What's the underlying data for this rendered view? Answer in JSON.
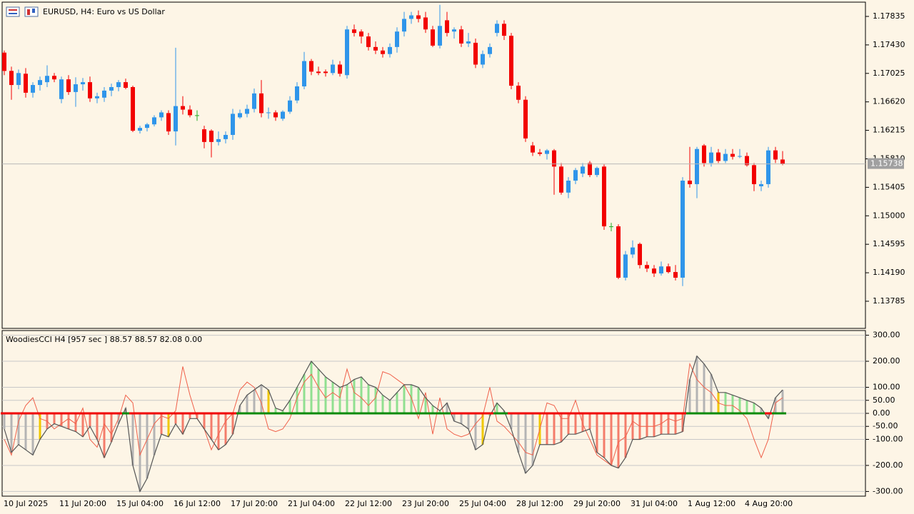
{
  "chart_data": [
    {
      "type": "candlestick",
      "title": "EURUSD, H4:  Euro vs US Dollar",
      "categories": [
        "10 Jul 2025",
        null,
        null,
        null,
        null,
        null,
        null,
        null,
        "11 Jul 20:00",
        null,
        null,
        null,
        null,
        null,
        null,
        null,
        "15 Jul 04:00",
        null,
        null,
        null,
        null,
        null,
        null,
        null,
        "16 Jul 12:00",
        null,
        null,
        null,
        null,
        null,
        null,
        null,
        "17 Jul 20:00",
        null,
        null,
        null,
        null,
        null,
        null,
        null,
        "21 Jul 04:00",
        null,
        null,
        null,
        null,
        null,
        null,
        null,
        "22 Jul 12:00",
        null,
        null,
        null,
        null,
        null,
        null,
        null,
        "23 Jul 20:00",
        null,
        null,
        null,
        null,
        null,
        null,
        null,
        "25 Jul 04:00",
        null,
        null,
        null,
        null,
        null,
        null,
        null,
        "28 Jul 12:00",
        null,
        null,
        null,
        null,
        null,
        null,
        null,
        "29 Jul 20:00",
        null,
        null,
        null,
        null,
        null,
        null,
        null,
        "31 Jul 04:00",
        null,
        null,
        null,
        null,
        null,
        null,
        null,
        "1 Aug 12:00",
        null,
        null,
        null,
        null,
        null,
        null,
        null,
        "4 Aug 20:00",
        null,
        null,
        null,
        null,
        null
      ],
      "open": [
        1.1732,
        1.1706,
        1.1686,
        1.1702,
        1.1675,
        1.1686,
        1.169,
        1.1699,
        1.1666,
        1.1694,
        1.1676,
        1.1687,
        1.169,
        1.1667,
        1.1668,
        1.1678,
        1.1683,
        1.169,
        1.1683,
        1.1621,
        1.1625,
        1.163,
        1.164,
        1.1646,
        1.162,
        1.1656,
        1.1651,
        1.1643,
        1.1623,
        1.1621,
        1.1605,
        1.1609,
        1.1615,
        1.164,
        1.1645,
        1.1652,
        1.1674,
        1.1646,
        1.1647,
        1.1638,
        1.1648,
        1.1664,
        1.1684,
        1.172,
        1.1705,
        1.1705,
        1.1703,
        1.1715,
        1.17,
        1.1765,
        1.1762,
        1.1755,
        1.174,
        1.1735,
        1.173,
        1.174,
        1.1762,
        1.178,
        1.1785,
        1.1782,
        1.1765,
        1.1742,
        1.1778,
        1.1762,
        1.1765,
        1.1745,
        1.1746,
        1.1715,
        1.173,
        1.176,
        1.1773,
        1.1756,
        1.1685,
        1.1665,
        1.16,
        1.159,
        1.1588,
        1.1593,
        1.157,
        1.1533,
        1.155,
        1.156,
        1.1575,
        1.1558,
        1.157,
        1.1485,
        1.1485,
        1.1412,
        1.1445,
        1.146,
        1.143,
        1.1425,
        1.1418,
        1.1428,
        1.142,
        1.1412,
        1.155,
        1.1545,
        1.16,
        1.1575,
        1.159,
        1.1578,
        1.1588,
        1.1584,
        1.1585,
        1.1572,
        1.1542,
        1.1545,
        1.1593,
        1.158
      ],
      "high": [
        1.1735,
        1.1712,
        1.1708,
        1.171,
        1.169,
        1.1698,
        1.1714,
        1.1703,
        1.1698,
        1.17,
        1.1697,
        1.1696,
        1.1698,
        1.1675,
        1.1683,
        1.1688,
        1.1693,
        1.1695,
        1.1685,
        1.1628,
        1.1632,
        1.1643,
        1.165,
        1.165,
        1.1739,
        1.167,
        1.1657,
        1.165,
        1.1628,
        1.1623,
        1.162,
        1.162,
        1.1652,
        1.1651,
        1.1658,
        1.1681,
        1.1693,
        1.1654,
        1.165,
        1.165,
        1.167,
        1.169,
        1.1733,
        1.1723,
        1.1712,
        1.1708,
        1.1722,
        1.172,
        1.177,
        1.1772,
        1.1765,
        1.176,
        1.1748,
        1.174,
        1.1745,
        1.1768,
        1.179,
        1.179,
        1.1792,
        1.179,
        1.177,
        1.18,
        1.179,
        1.1768,
        1.177,
        1.176,
        1.1752,
        1.1735,
        1.1745,
        1.1778,
        1.1778,
        1.176,
        1.169,
        1.167,
        1.1605,
        1.1595,
        1.1595,
        1.1595,
        1.1575,
        1.1555,
        1.1568,
        1.1575,
        1.1578,
        1.157,
        1.1573,
        1.149,
        1.1488,
        1.145,
        1.1465,
        1.1462,
        1.1435,
        1.143,
        1.1435,
        1.1432,
        1.143,
        1.1555,
        1.1598,
        1.1598,
        1.1602,
        1.1598,
        1.1595,
        1.1595,
        1.1595,
        1.1595,
        1.159,
        1.1575,
        1.155,
        1.1598,
        1.1598,
        1.1592
      ],
      "low": [
        1.17,
        1.1665,
        1.168,
        1.1668,
        1.1668,
        1.1678,
        1.1683,
        1.169,
        1.166,
        1.1672,
        1.1655,
        1.1678,
        1.1662,
        1.166,
        1.1662,
        1.167,
        1.1677,
        1.168,
        1.1619,
        1.1617,
        1.162,
        1.1627,
        1.1635,
        1.1615,
        1.16,
        1.1644,
        1.164,
        1.1635,
        1.1596,
        1.1583,
        1.16,
        1.1603,
        1.1608,
        1.1638,
        1.164,
        1.1647,
        1.164,
        1.1638,
        1.1635,
        1.1635,
        1.1645,
        1.166,
        1.168,
        1.17,
        1.17,
        1.1698,
        1.17,
        1.1698,
        1.1695,
        1.1755,
        1.1745,
        1.1735,
        1.173,
        1.1725,
        1.1725,
        1.1732,
        1.1755,
        1.1773,
        1.1775,
        1.176,
        1.174,
        1.1738,
        1.1755,
        1.1752,
        1.174,
        1.174,
        1.171,
        1.171,
        1.1725,
        1.1755,
        1.175,
        1.168,
        1.166,
        1.1605,
        1.1585,
        1.1585,
        1.158,
        1.153,
        1.153,
        1.1525,
        1.1545,
        1.1555,
        1.1555,
        1.1555,
        1.148,
        1.1478,
        1.141,
        1.1408,
        1.144,
        1.1425,
        1.142,
        1.1413,
        1.1415,
        1.1418,
        1.1408,
        1.14,
        1.154,
        1.1525,
        1.157,
        1.157,
        1.1575,
        1.1575,
        1.158,
        1.1582,
        1.157,
        1.1535,
        1.1535,
        1.154,
        1.1575,
        1.1572
      ],
      "close": [
        1.1706,
        1.1686,
        1.1703,
        1.1675,
        1.1686,
        1.1693,
        1.1699,
        1.1694,
        1.1694,
        1.1676,
        1.1687,
        1.169,
        1.1667,
        1.167,
        1.1678,
        1.1683,
        1.169,
        1.1682,
        1.1621,
        1.1625,
        1.163,
        1.164,
        1.1647,
        1.162,
        1.1656,
        1.1651,
        1.1643,
        1.1643,
        1.1605,
        1.1605,
        1.1609,
        1.1615,
        1.1645,
        1.1646,
        1.1652,
        1.1674,
        1.1646,
        1.1647,
        1.164,
        1.1648,
        1.1664,
        1.1684,
        1.172,
        1.1705,
        1.1703,
        1.1703,
        1.1715,
        1.1702,
        1.1765,
        1.176,
        1.1755,
        1.174,
        1.1735,
        1.173,
        1.174,
        1.1762,
        1.178,
        1.1785,
        1.178,
        1.1765,
        1.1742,
        1.177,
        1.176,
        1.1765,
        1.1745,
        1.1748,
        1.1715,
        1.173,
        1.174,
        1.1773,
        1.1756,
        1.1685,
        1.1665,
        1.161,
        1.159,
        1.1588,
        1.1593,
        1.157,
        1.1533,
        1.155,
        1.1565,
        1.157,
        1.1558,
        1.1568,
        1.1485,
        1.1485,
        1.1412,
        1.1445,
        1.1455,
        1.143,
        1.1425,
        1.1418,
        1.1428,
        1.142,
        1.1412,
        1.155,
        1.1545,
        1.1595,
        1.1575,
        1.159,
        1.1578,
        1.1588,
        1.1584,
        1.1585,
        1.1572,
        1.1545,
        1.1545,
        1.1593,
        1.158,
        1.1574
      ],
      "up_color": "#2f95ea",
      "down_color": "#f20000",
      "doji_color": "#22aa22",
      "current_price": {
        "value": 1.15738,
        "label": "1.15738"
      },
      "ylim": [
        1.13399,
        1.18038
      ],
      "yticks": [
        1.17835,
        {
          "value": 1.1743,
          "label": "1.17430"
        },
        1.17025,
        {
          "value": 1.1662,
          "label": "1.16620"
        },
        1.16215,
        {
          "value": 1.1581,
          "label": "1.15810"
        },
        1.15405,
        {
          "value": 1.15,
          "label": "1.15000"
        },
        1.14595,
        {
          "value": 1.1419,
          "label": "1.14190"
        },
        1.13785
      ]
    },
    {
      "type": "histogram",
      "title": "WoodiesCCI H4 [957 sec ] 88.57 88.57 82.08 0.00",
      "values": [
        -60,
        -150,
        -120,
        -140,
        -160,
        -100,
        -60,
        -40,
        -50,
        -60,
        -70,
        -90,
        -50,
        -100,
        -170,
        -110,
        -40,
        20,
        -200,
        -300,
        -250,
        -160,
        -80,
        -90,
        -40,
        -80,
        -20,
        -20,
        -60,
        -100,
        -140,
        -120,
        -80,
        30,
        70,
        90,
        110,
        90,
        20,
        10,
        50,
        100,
        150,
        200,
        170,
        140,
        120,
        100,
        110,
        130,
        140,
        110,
        100,
        70,
        50,
        80,
        110,
        110,
        100,
        60,
        30,
        10,
        40,
        -30,
        -40,
        -60,
        -140,
        -120,
        -10,
        40,
        10,
        -60,
        -150,
        -230,
        -200,
        -120,
        -120,
        -120,
        -110,
        -80,
        -80,
        -70,
        -60,
        -150,
        -170,
        -200,
        -210,
        -170,
        -100,
        -100,
        -90,
        -90,
        -80,
        -80,
        -80,
        -70,
        130,
        220,
        190,
        150,
        80,
        80,
        70,
        60,
        50,
        40,
        20,
        -20,
        60,
        90
      ],
      "bar_colors": [
        "#b4b4b4",
        "#b4b4b4",
        "#b4b4b4",
        "#b4b4b4",
        "#b4b4b4",
        "#f0c800",
        "#f47c6a",
        "#f47c6a",
        "#f47c6a",
        "#f47c6a",
        "#f47c6a",
        "#f47c6a",
        "#f47c6a",
        "#f47c6a",
        "#f47c6a",
        "#f47c6a",
        "#b4b4b4",
        "#b4b4b4",
        "#b4b4b4",
        "#b4b4b4",
        "#b4b4b4",
        "#b4b4b4",
        "#f47c6a",
        "#f0c800",
        "#f47c6a",
        "#f47c6a",
        "#f47c6a",
        "#f47c6a",
        "#f47c6a",
        "#f47c6a",
        "#f47c6a",
        "#f47c6a",
        "#f47c6a",
        "#b4b4b4",
        "#b4b4b4",
        "#b4b4b4",
        "#b4b4b4",
        "#f0c800",
        "#90e090",
        "#90e090",
        "#90e090",
        "#90e090",
        "#90e090",
        "#90e090",
        "#90e090",
        "#90e090",
        "#90e090",
        "#90e090",
        "#90e090",
        "#90e090",
        "#90e090",
        "#90e090",
        "#90e090",
        "#90e090",
        "#90e090",
        "#90e090",
        "#90e090",
        "#90e090",
        "#90e090",
        "#90e090",
        "#90e090",
        "#90e090",
        "#b4b4b4",
        "#b4b4b4",
        "#b4b4b4",
        "#b4b4b4",
        "#b4b4b4",
        "#f0c800",
        "#90e090",
        "#90e090",
        "#b4b4b4",
        "#b4b4b4",
        "#b4b4b4",
        "#b4b4b4",
        "#b4b4b4",
        "#f0c800",
        "#f47c6a",
        "#f47c6a",
        "#f47c6a",
        "#f47c6a",
        "#f47c6a",
        "#f47c6a",
        "#f47c6a",
        "#f47c6a",
        "#f47c6a",
        "#f47c6a",
        "#f47c6a",
        "#f47c6a",
        "#f47c6a",
        "#f47c6a",
        "#f47c6a",
        "#f47c6a",
        "#f47c6a",
        "#f47c6a",
        "#f47c6a",
        "#f47c6a",
        "#b4b4b4",
        "#b4b4b4",
        "#b4b4b4",
        "#b4b4b4",
        "#f0c800",
        "#90e090",
        "#90e090",
        "#90e090",
        "#90e090",
        "#90e090",
        "#b4b4b4",
        "#b4b4b4",
        "#b4b4b4",
        "#b4b4b4"
      ],
      "line_color": "#555555",
      "turbo_values": [
        -100,
        -160,
        -30,
        30,
        60,
        -20,
        -30,
        -60,
        -40,
        -20,
        -40,
        20,
        -100,
        -130,
        -40,
        -80,
        -20,
        70,
        40,
        -160,
        -100,
        -40,
        -10,
        -20,
        10,
        180,
        70,
        -20,
        -60,
        -140,
        -80,
        -30,
        0,
        90,
        120,
        100,
        40,
        -60,
        -70,
        -60,
        -20,
        60,
        120,
        150,
        100,
        60,
        80,
        60,
        170,
        80,
        60,
        30,
        60,
        160,
        150,
        130,
        110,
        60,
        -20,
        80,
        -80,
        60,
        -60,
        -80,
        -90,
        -80,
        -40,
        -10,
        100,
        -30,
        -50,
        -80,
        -110,
        -150,
        -160,
        -60,
        40,
        30,
        -20,
        -20,
        50,
        -40,
        -100,
        -160,
        -180,
        -200,
        -110,
        -90,
        -30,
        -50,
        -50,
        -50,
        -40,
        -20,
        -30,
        -20,
        190,
        130,
        100,
        80,
        40,
        30,
        30,
        10,
        -20,
        -100,
        -170,
        -100,
        40,
        60
      ],
      "turbo_color": "#f0604a",
      "zero_up_color": "#0a8a0a",
      "zero_down_color": "#f00000",
      "ylim": [
        -318,
        318
      ],
      "yticks": [
        {
          "value": 300,
          "label": "300.00"
        },
        {
          "value": 200,
          "label": "200.00"
        },
        {
          "value": 100,
          "label": "100.00"
        },
        {
          "value": 50,
          "label": "50.00"
        },
        {
          "value": 0,
          "label": "0.00"
        },
        {
          "value": -50,
          "label": "-50.00"
        },
        {
          "value": -100,
          "label": "-100.00"
        },
        {
          "value": -200,
          "label": "-200.00"
        },
        {
          "value": -300,
          "label": "-300.00"
        }
      ]
    }
  ]
}
